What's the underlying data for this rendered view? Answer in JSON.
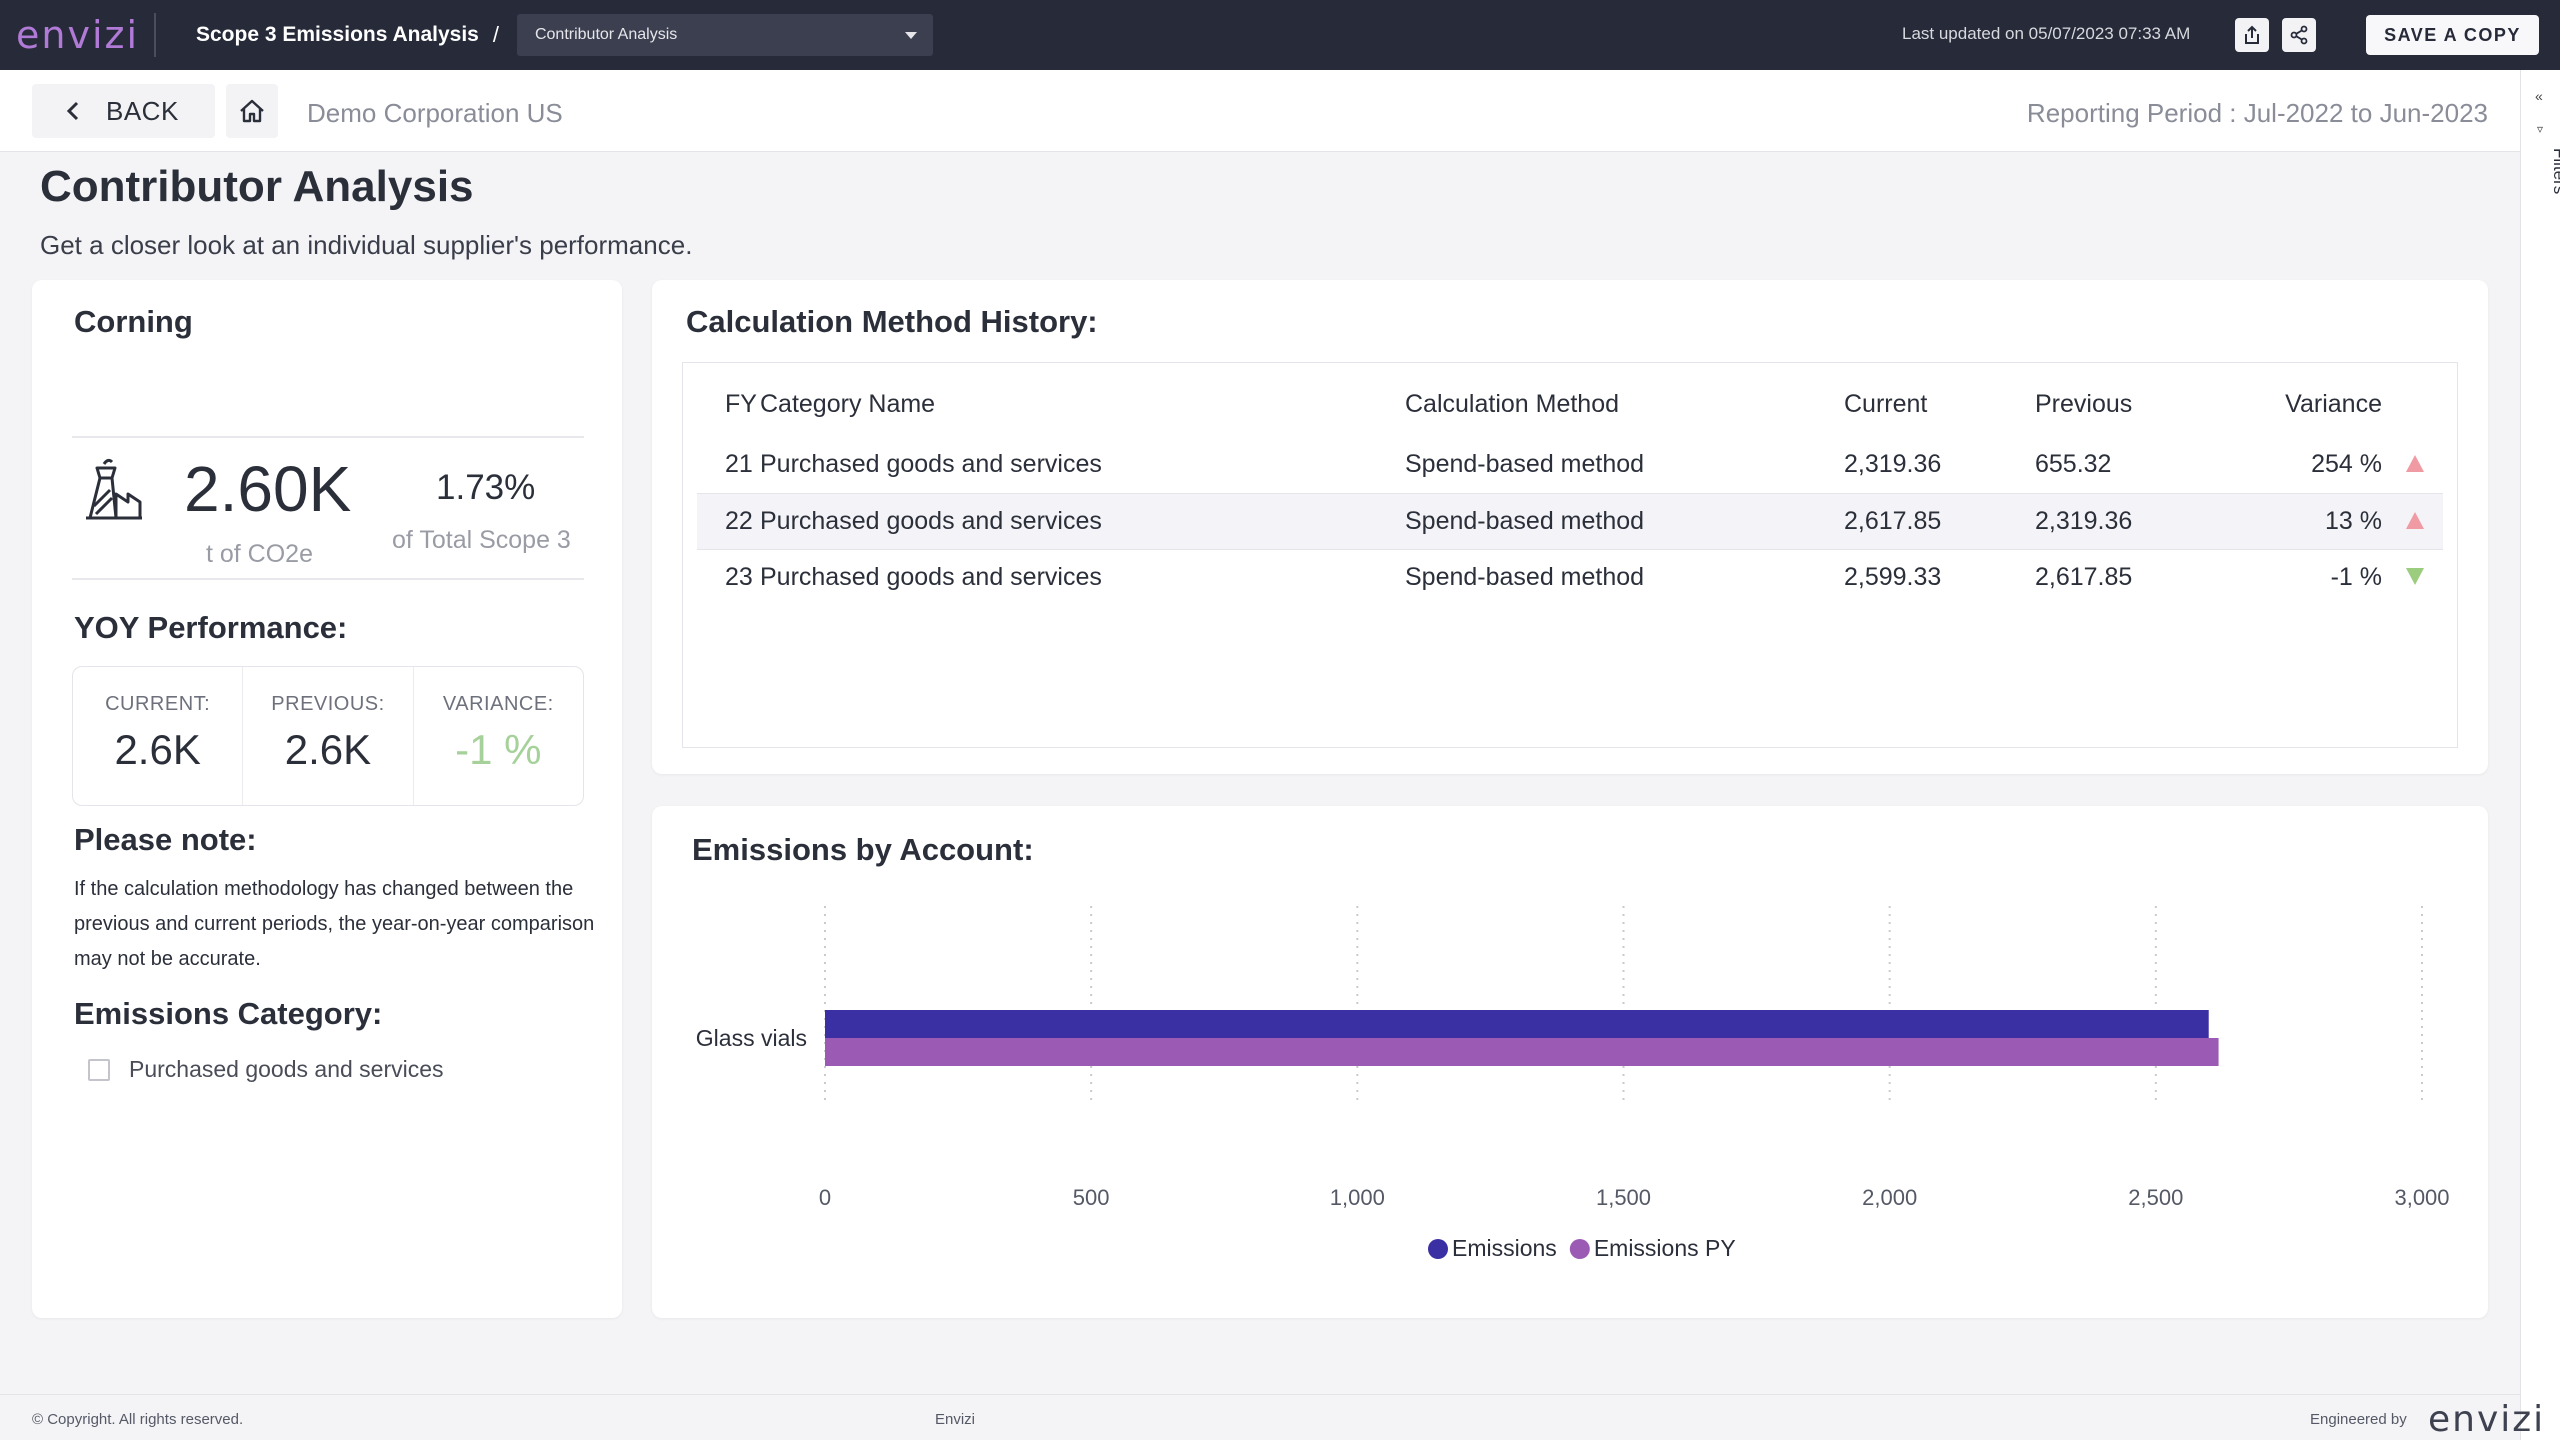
{
  "header": {
    "logo": "envizi",
    "breadcrumb_main": "Scope 3 Emissions Analysis",
    "breadcrumb_sep": "/",
    "page_select": "Contributor Analysis",
    "last_updated": "Last updated on 05/07/2023 07:33 AM",
    "save_copy": "SAVE A COPY",
    "export_icon": "export-icon",
    "share_icon": "share-icon"
  },
  "subheader": {
    "back": "BACK",
    "org": "Demo Corporation US",
    "period": "Reporting Period : Jul-2022 to Jun-2023"
  },
  "filters": {
    "label": "Filters"
  },
  "page": {
    "title": "Contributor Analysis",
    "subtitle": "Get a closer look at an individual supplier's performance."
  },
  "supplier": {
    "name": "Corning",
    "total": "2.60K",
    "unit": "t of CO2e",
    "share": "1.73%",
    "share_label": "of Total Scope 3",
    "yoy_title": "YOY Performance:",
    "yoy": [
      {
        "label": "CURRENT:",
        "value": "2.6K"
      },
      {
        "label": "PREVIOUS:",
        "value": "2.6K"
      },
      {
        "label": "VARIANCE:",
        "value": "-1 %"
      }
    ],
    "note_title": "Please note:",
    "note": "If the calculation methodology has changed between the previous and current periods, the year-on-year comparison may not be accurate.",
    "category_title": "Emissions Category:",
    "category_item": "Purchased goods and services"
  },
  "calc_history": {
    "title": "Calculation Method History:",
    "columns": [
      "FY",
      "Category Name",
      "Calculation Method",
      "Current",
      "Previous",
      "Variance"
    ],
    "rows": [
      {
        "fy": "21",
        "category": "Purchased goods and services",
        "method": "Spend-based method",
        "current": "2,319.36",
        "previous": "655.32",
        "variance": "254 %",
        "trend": "up"
      },
      {
        "fy": "22",
        "category": "Purchased goods and services",
        "method": "Spend-based method",
        "current": "2,617.85",
        "previous": "2,319.36",
        "variance": "13 %",
        "trend": "up"
      },
      {
        "fy": "23",
        "category": "Purchased goods and services",
        "method": "Spend-based method",
        "current": "2,599.33",
        "previous": "2,617.85",
        "variance": "-1 %",
        "trend": "down"
      }
    ],
    "colors": {
      "up": "#f09aa3",
      "down": "#9ccc7e"
    }
  },
  "chart_data": {
    "type": "bar",
    "orientation": "horizontal",
    "title": "Emissions by Account:",
    "categories": [
      "Glass vials"
    ],
    "series": [
      {
        "name": "Emissions",
        "values": [
          2599.33
        ],
        "color": "#3a2fa3"
      },
      {
        "name": "Emissions PY",
        "values": [
          2617.85
        ],
        "color": "#9b5bb5"
      }
    ],
    "xlim": [
      0,
      3000
    ],
    "xticks": [
      0,
      500,
      1000,
      1500,
      2000,
      2500,
      3000
    ],
    "xtick_labels": [
      "0",
      "500",
      "1,000",
      "1,500",
      "2,000",
      "2,500",
      "3,000"
    ],
    "grid": "vertical dotted",
    "legend": "bottom-center"
  },
  "footer": {
    "copyright": "© Copyright. All rights reserved.",
    "center": "Envizi",
    "engineered_by": "Engineered by",
    "logo": "envizi"
  }
}
